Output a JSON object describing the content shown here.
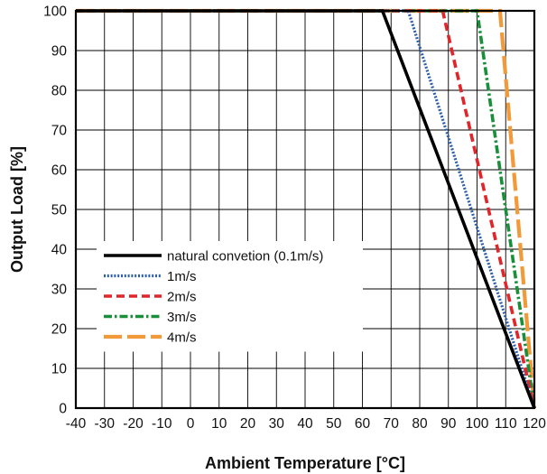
{
  "chart_data": {
    "type": "line",
    "xlabel": "Ambient Temperature [°C]",
    "ylabel": "Output Load [%]",
    "xlim": [
      -40,
      120
    ],
    "ylim": [
      0,
      100
    ],
    "xticks": [
      -40,
      -30,
      -20,
      -10,
      0,
      10,
      20,
      30,
      40,
      50,
      60,
      70,
      80,
      90,
      100,
      110,
      120
    ],
    "yticks": [
      0,
      10,
      20,
      30,
      40,
      50,
      60,
      70,
      80,
      90,
      100
    ],
    "grid": true,
    "legend": {
      "placement": "lower-left"
    },
    "series": [
      {
        "name": "natural convetion (0.1m/s)",
        "color": "#000000",
        "style": "solid",
        "x": [
          -40,
          67,
          120
        ],
        "y": [
          100,
          100,
          0
        ]
      },
      {
        "name": "1m/s",
        "color": "#2d5ea8",
        "style": "dotted",
        "x": [
          -40,
          76,
          120
        ],
        "y": [
          100,
          100,
          0
        ]
      },
      {
        "name": "2m/s",
        "color": "#e0262b",
        "style": "dashed",
        "x": [
          -40,
          88,
          120
        ],
        "y": [
          100,
          100,
          0
        ]
      },
      {
        "name": "3m/s",
        "color": "#1a8f3a",
        "style": "dashdot",
        "x": [
          -40,
          100,
          120
        ],
        "y": [
          100,
          100,
          0
        ]
      },
      {
        "name": "4m/s",
        "color": "#f29a3a",
        "style": "longdash",
        "x": [
          -40,
          108,
          120
        ],
        "y": [
          100,
          100,
          0
        ]
      }
    ]
  }
}
